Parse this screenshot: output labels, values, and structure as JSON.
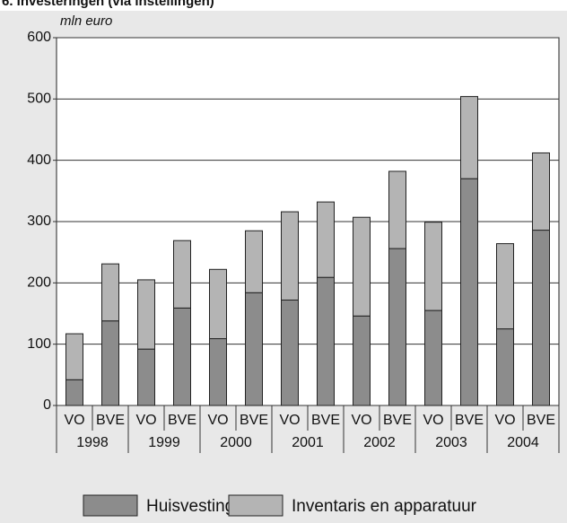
{
  "chart_data": {
    "type": "stacked-bar",
    "title": "6. Investeringen (via instellingen)",
    "y_label": "mln euro",
    "categories": [
      "VO",
      "BVE",
      "VO",
      "BVE",
      "VO",
      "BVE",
      "VO",
      "BVE",
      "VO",
      "BVE",
      "VO",
      "BVE",
      "VO",
      "BVE"
    ],
    "groups": [
      "1998",
      "1999",
      "2000",
      "2001",
      "2002",
      "2003",
      "2004"
    ],
    "series": [
      {
        "name": "Huisvesting",
        "color": "#8c8c8c",
        "values": [
          42,
          138,
          92,
          159,
          109,
          184,
          172,
          209,
          146,
          256,
          155,
          370,
          125,
          286
        ]
      },
      {
        "name": "Inventaris en apparatuur",
        "color": "#b4b4b4",
        "values": [
          75,
          93,
          113,
          110,
          113,
          101,
          144,
          123,
          161,
          126,
          144,
          134,
          139,
          126
        ]
      }
    ],
    "ylim": [
      0,
      600
    ],
    "yticks": [
      0,
      100,
      200,
      300,
      400,
      500,
      600
    ],
    "grid": true
  }
}
